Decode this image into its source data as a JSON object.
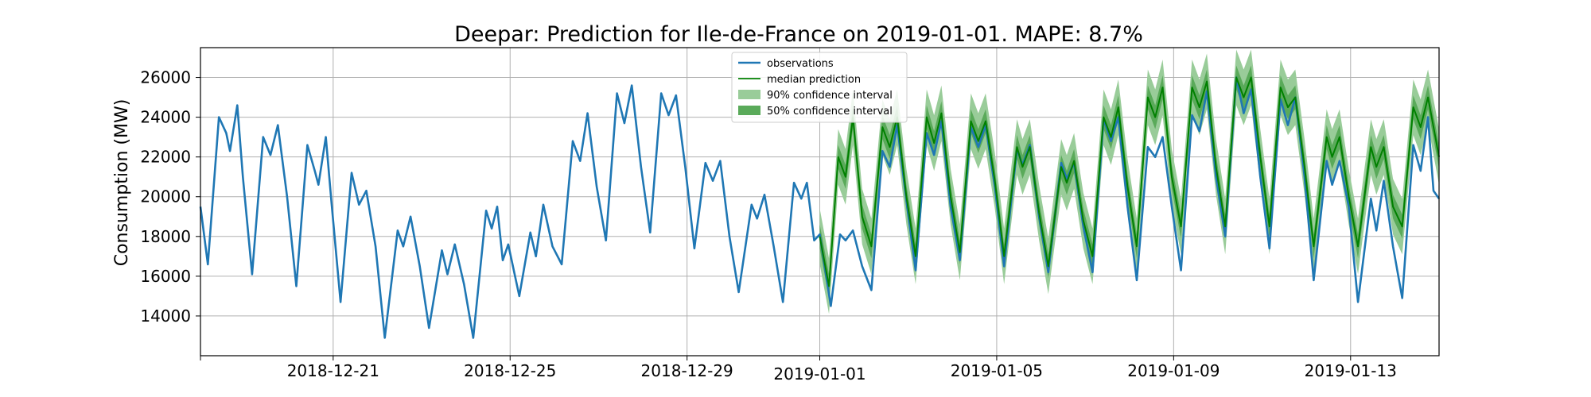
{
  "chart_data": {
    "type": "line",
    "title": "Deepar: Prediction for Ile-de-France on 2019-01-01. MAPE: 8.7%",
    "xlabel": "",
    "ylabel": "Consumption (MW)",
    "x_range": [
      "2018-12-18",
      "2019-01-15"
    ],
    "ylim": [
      12000,
      27500
    ],
    "grid": true,
    "legend_placement": "top-center",
    "x_ticks": [
      {
        "date": "2018-12-21",
        "label": "2018-12-21"
      },
      {
        "date": "2018-12-25",
        "label": "2018-12-25"
      },
      {
        "date": "2018-12-29",
        "label": "2018-12-29"
      },
      {
        "date": "2019-01-01",
        "label": "2019-01-01"
      },
      {
        "date": "2019-01-05",
        "label": "2019-01-05"
      },
      {
        "date": "2019-01-09",
        "label": "2019-01-09"
      },
      {
        "date": "2019-01-13",
        "label": "2019-01-13"
      }
    ],
    "y_ticks": [
      14000,
      16000,
      18000,
      20000,
      22000,
      24000,
      26000
    ],
    "observations": {
      "name": "observations",
      "color": "#1f77b4",
      "points": [
        [
          "2018-12-18T00:00",
          19500
        ],
        [
          "2018-12-18T04:00",
          16600
        ],
        [
          "2018-12-18T10:00",
          24000
        ],
        [
          "2018-12-18T14:00",
          23200
        ],
        [
          "2018-12-18T16:00",
          22300
        ],
        [
          "2018-12-18T20:00",
          24600
        ],
        [
          "2018-12-18T23:00",
          21000
        ],
        [
          "2018-12-19T04:00",
          16100
        ],
        [
          "2018-12-19T10:00",
          23000
        ],
        [
          "2018-12-19T14:00",
          22100
        ],
        [
          "2018-12-19T18:00",
          23600
        ],
        [
          "2018-12-19T23:00",
          20000
        ],
        [
          "2018-12-20T04:00",
          15500
        ],
        [
          "2018-12-20T10:00",
          22600
        ],
        [
          "2018-12-20T14:00",
          21300
        ],
        [
          "2018-12-20T16:00",
          20600
        ],
        [
          "2018-12-20T20:00",
          23000
        ],
        [
          "2018-12-20T23:00",
          19800
        ],
        [
          "2018-12-21T04:00",
          14700
        ],
        [
          "2018-12-21T10:00",
          21200
        ],
        [
          "2018-12-21T14:00",
          19600
        ],
        [
          "2018-12-21T18:00",
          20300
        ],
        [
          "2018-12-21T23:00",
          17500
        ],
        [
          "2018-12-22T04:00",
          12900
        ],
        [
          "2018-12-22T11:00",
          18300
        ],
        [
          "2018-12-22T14:00",
          17500
        ],
        [
          "2018-12-22T18:00",
          19000
        ],
        [
          "2018-12-22T23:00",
          16500
        ],
        [
          "2018-12-23T04:00",
          13400
        ],
        [
          "2018-12-23T11:00",
          17300
        ],
        [
          "2018-12-23T14:00",
          16100
        ],
        [
          "2018-12-23T18:00",
          17600
        ],
        [
          "2018-12-23T23:00",
          15600
        ],
        [
          "2018-12-24T04:00",
          12900
        ],
        [
          "2018-12-24T11:00",
          19300
        ],
        [
          "2018-12-24T14:00",
          18400
        ],
        [
          "2018-12-24T17:00",
          19500
        ],
        [
          "2018-12-24T20:00",
          16800
        ],
        [
          "2018-12-24T23:00",
          17600
        ],
        [
          "2018-12-25T05:00",
          15000
        ],
        [
          "2018-12-25T11:00",
          18200
        ],
        [
          "2018-12-25T14:00",
          17000
        ],
        [
          "2018-12-25T18:00",
          19600
        ],
        [
          "2018-12-25T23:00",
          17500
        ],
        [
          "2018-12-26T04:00",
          16600
        ],
        [
          "2018-12-26T10:00",
          22800
        ],
        [
          "2018-12-26T14:00",
          21800
        ],
        [
          "2018-12-26T18:00",
          24200
        ],
        [
          "2018-12-26T23:00",
          20500
        ],
        [
          "2018-12-27T04:00",
          17800
        ],
        [
          "2018-12-27T10:00",
          25200
        ],
        [
          "2018-12-27T14:00",
          23700
        ],
        [
          "2018-12-27T18:00",
          25600
        ],
        [
          "2018-12-27T23:00",
          21500
        ],
        [
          "2018-12-28T04:00",
          18200
        ],
        [
          "2018-12-28T10:00",
          25200
        ],
        [
          "2018-12-28T14:00",
          24100
        ],
        [
          "2018-12-28T18:00",
          25100
        ],
        [
          "2018-12-28T23:00",
          21500
        ],
        [
          "2018-12-29T04:00",
          17400
        ],
        [
          "2018-12-29T10:00",
          21700
        ],
        [
          "2018-12-29T14:00",
          20800
        ],
        [
          "2018-12-29T18:00",
          21800
        ],
        [
          "2018-12-29T23:00",
          18000
        ],
        [
          "2018-12-30T04:00",
          15200
        ],
        [
          "2018-12-30T11:00",
          19600
        ],
        [
          "2018-12-30T14:00",
          18900
        ],
        [
          "2018-12-30T18:00",
          20100
        ],
        [
          "2018-12-30T23:00",
          17500
        ],
        [
          "2018-12-31T04:00",
          14700
        ],
        [
          "2018-12-31T10:00",
          20700
        ],
        [
          "2018-12-31T14:00",
          19900
        ],
        [
          "2018-12-31T17:00",
          20700
        ],
        [
          "2018-12-31T21:00",
          17800
        ],
        [
          "2019-01-01T00:00",
          18100
        ],
        [
          "2019-01-01T06:00",
          14500
        ],
        [
          "2019-01-01T11:00",
          18100
        ],
        [
          "2019-01-01T14:00",
          17800
        ],
        [
          "2019-01-01T18:00",
          18300
        ],
        [
          "2019-01-01T23:00",
          16500
        ],
        [
          "2019-01-02T04:00",
          15300
        ],
        [
          "2019-01-02T10:00",
          22300
        ],
        [
          "2019-01-02T14:00",
          21500
        ],
        [
          "2019-01-02T18:00",
          23600
        ],
        [
          "2019-01-02T23:00",
          19800
        ],
        [
          "2019-01-03T04:00",
          16300
        ],
        [
          "2019-01-03T10:00",
          23200
        ],
        [
          "2019-01-03T14:00",
          22100
        ],
        [
          "2019-01-03T18:00",
          23800
        ],
        [
          "2019-01-03T23:00",
          19500
        ],
        [
          "2019-01-04T04:00",
          16800
        ],
        [
          "2019-01-04T10:00",
          23500
        ],
        [
          "2019-01-04T14:00",
          22500
        ],
        [
          "2019-01-04T18:00",
          23600
        ],
        [
          "2019-01-04T23:00",
          20500
        ],
        [
          "2019-01-05T04:00",
          16500
        ],
        [
          "2019-01-05T11:00",
          22400
        ],
        [
          "2019-01-05T14:00",
          21600
        ],
        [
          "2019-01-05T18:00",
          22600
        ],
        [
          "2019-01-05T23:00",
          19000
        ],
        [
          "2019-01-06T04:00",
          16200
        ],
        [
          "2019-01-06T11:00",
          21700
        ],
        [
          "2019-01-06T14:00",
          20900
        ],
        [
          "2019-01-06T18:00",
          21700
        ],
        [
          "2019-01-06T23:00",
          18500
        ],
        [
          "2019-01-07T04:00",
          16200
        ],
        [
          "2019-01-07T10:00",
          23900
        ],
        [
          "2019-01-07T14:00",
          22800
        ],
        [
          "2019-01-07T18:00",
          24000
        ],
        [
          "2019-01-07T23:00",
          19500
        ],
        [
          "2019-01-08T04:00",
          15800
        ],
        [
          "2019-01-08T10:00",
          22500
        ],
        [
          "2019-01-08T14:00",
          22000
        ],
        [
          "2019-01-08T18:00",
          23000
        ],
        [
          "2019-01-08T23:00",
          19500
        ],
        [
          "2019-01-09T04:00",
          16300
        ],
        [
          "2019-01-09T10:00",
          24100
        ],
        [
          "2019-01-09T14:00",
          23300
        ],
        [
          "2019-01-09T18:00",
          25300
        ],
        [
          "2019-01-09T23:00",
          21000
        ],
        [
          "2019-01-10T04:00",
          18000
        ],
        [
          "2019-01-10T10:00",
          26000
        ],
        [
          "2019-01-10T14:00",
          24200
        ],
        [
          "2019-01-10T18:00",
          25400
        ],
        [
          "2019-01-10T23:00",
          21000
        ],
        [
          "2019-01-11T04:00",
          17400
        ],
        [
          "2019-01-11T10:00",
          24900
        ],
        [
          "2019-01-11T14:00",
          23600
        ],
        [
          "2019-01-11T18:00",
          25000
        ],
        [
          "2019-01-11T23:00",
          21000
        ],
        [
          "2019-01-12T04:00",
          15800
        ],
        [
          "2019-01-12T11:00",
          21800
        ],
        [
          "2019-01-12T14:00",
          20600
        ],
        [
          "2019-01-12T18:00",
          21800
        ],
        [
          "2019-01-12T23:00",
          19500
        ],
        [
          "2019-01-13T04:00",
          14700
        ],
        [
          "2019-01-13T11:00",
          19900
        ],
        [
          "2019-01-13T14:00",
          18300
        ],
        [
          "2019-01-13T18:00",
          20800
        ],
        [
          "2019-01-13T23:00",
          17500
        ],
        [
          "2019-01-14T04:00",
          14900
        ],
        [
          "2019-01-14T10:00",
          22600
        ],
        [
          "2019-01-14T14:00",
          21300
        ],
        [
          "2019-01-14T18:00",
          24000
        ],
        [
          "2019-01-14T21:00",
          20300
        ],
        [
          "2019-01-14T24:00",
          19900
        ]
      ]
    },
    "forecast_start": "2019-01-01T00:00",
    "median_prediction": {
      "name": "median prediction",
      "color": "#008000",
      "points": [
        [
          "2019-01-01T00:00",
          18000
        ],
        [
          "2019-01-01T05:00",
          15500
        ],
        [
          "2019-01-01T10:00",
          22000
        ],
        [
          "2019-01-01T14:00",
          21000
        ],
        [
          "2019-01-01T18:00",
          24000
        ],
        [
          "2019-01-01T23:00",
          19000
        ],
        [
          "2019-01-02T04:00",
          17500
        ],
        [
          "2019-01-02T10:00",
          23500
        ],
        [
          "2019-01-02T14:00",
          22500
        ],
        [
          "2019-01-02T18:00",
          24000
        ],
        [
          "2019-01-02T23:00",
          20000
        ],
        [
          "2019-01-03T04:00",
          17000
        ],
        [
          "2019-01-03T10:00",
          24000
        ],
        [
          "2019-01-03T14:00",
          22700
        ],
        [
          "2019-01-03T18:00",
          24200
        ],
        [
          "2019-01-03T23:00",
          20000
        ],
        [
          "2019-01-04T04:00",
          17200
        ],
        [
          "2019-01-04T10:00",
          23800
        ],
        [
          "2019-01-04T14:00",
          22800
        ],
        [
          "2019-01-04T18:00",
          23800
        ],
        [
          "2019-01-04T23:00",
          20800
        ],
        [
          "2019-01-05T04:00",
          17000
        ],
        [
          "2019-01-05T11:00",
          22500
        ],
        [
          "2019-01-05T14:00",
          21500
        ],
        [
          "2019-01-05T18:00",
          22500
        ],
        [
          "2019-01-05T23:00",
          19200
        ],
        [
          "2019-01-06T04:00",
          16500
        ],
        [
          "2019-01-06T11:00",
          21500
        ],
        [
          "2019-01-06T14:00",
          20700
        ],
        [
          "2019-01-06T18:00",
          21800
        ],
        [
          "2019-01-06T23:00",
          18800
        ],
        [
          "2019-01-07T04:00",
          17000
        ],
        [
          "2019-01-07T10:00",
          24000
        ],
        [
          "2019-01-07T14:00",
          23000
        ],
        [
          "2019-01-07T18:00",
          24500
        ],
        [
          "2019-01-07T23:00",
          20500
        ],
        [
          "2019-01-08T04:00",
          17500
        ],
        [
          "2019-01-08T10:00",
          25000
        ],
        [
          "2019-01-08T14:00",
          24000
        ],
        [
          "2019-01-08T18:00",
          25500
        ],
        [
          "2019-01-08T23:00",
          21000
        ],
        [
          "2019-01-09T04:00",
          18500
        ],
        [
          "2019-01-09T10:00",
          25500
        ],
        [
          "2019-01-09T14:00",
          24500
        ],
        [
          "2019-01-09T18:00",
          25800
        ],
        [
          "2019-01-09T23:00",
          21500
        ],
        [
          "2019-01-10T04:00",
          18500
        ],
        [
          "2019-01-10T10:00",
          26000
        ],
        [
          "2019-01-10T14:00",
          25000
        ],
        [
          "2019-01-10T18:00",
          26000
        ],
        [
          "2019-01-10T23:00",
          22000
        ],
        [
          "2019-01-11T04:00",
          18500
        ],
        [
          "2019-01-11T10:00",
          25500
        ],
        [
          "2019-01-11T14:00",
          24500
        ],
        [
          "2019-01-11T18:00",
          25000
        ],
        [
          "2019-01-11T23:00",
          21500
        ],
        [
          "2019-01-12T04:00",
          17500
        ],
        [
          "2019-01-12T11:00",
          23000
        ],
        [
          "2019-01-12T14:00",
          22000
        ],
        [
          "2019-01-12T18:00",
          23000
        ],
        [
          "2019-01-12T23:00",
          20000
        ],
        [
          "2019-01-13T04:00",
          17500
        ],
        [
          "2019-01-13T11:00",
          22500
        ],
        [
          "2019-01-13T14:00",
          21500
        ],
        [
          "2019-01-13T18:00",
          22500
        ],
        [
          "2019-01-13T23:00",
          19500
        ],
        [
          "2019-01-14T04:00",
          18500
        ],
        [
          "2019-01-14T10:00",
          24500
        ],
        [
          "2019-01-14T14:00",
          23500
        ],
        [
          "2019-01-14T18:00",
          25000
        ],
        [
          "2019-01-14T24:00",
          22000
        ]
      ]
    },
    "confidence_intervals": [
      {
        "name": "90% confidence interval",
        "color": "#99cc99",
        "half_width_mw": 1400
      },
      {
        "name": "50% confidence interval",
        "color": "#5aaa5a",
        "half_width_mw": 600
      }
    ],
    "legend": [
      {
        "label": "observations",
        "kind": "line",
        "color": "#1f77b4"
      },
      {
        "label": "median prediction",
        "kind": "line",
        "color": "#008000"
      },
      {
        "label": "90% confidence interval",
        "kind": "patch",
        "color": "#99cc99"
      },
      {
        "label": "50% confidence interval",
        "kind": "patch",
        "color": "#5aaa5a"
      }
    ]
  }
}
